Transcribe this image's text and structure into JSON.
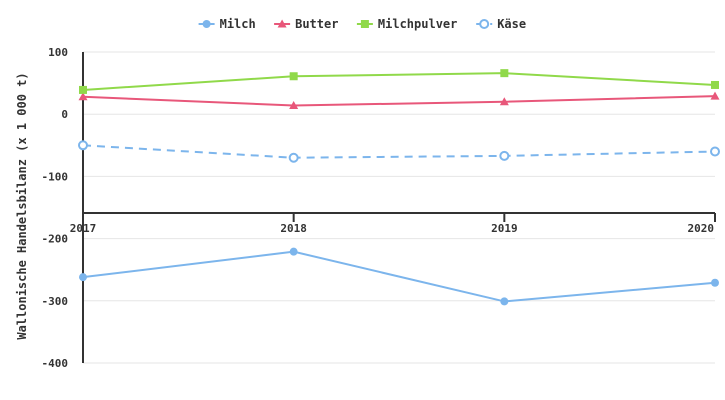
{
  "chart_data": {
    "type": "line",
    "title": "",
    "xlabel": "",
    "ylabel": "Wallonische Handelsbilanz (x 1 000 t)",
    "categories": [
      "2017",
      "2018",
      "2019",
      "2020"
    ],
    "ylim": [
      -400,
      100
    ],
    "yticks": [
      100,
      0,
      -100,
      -200,
      -300,
      -400
    ],
    "grid": true,
    "legend_position": "top",
    "series": [
      {
        "name": "Milch",
        "values": [
          -262,
          -221,
          -301,
          -271
        ],
        "color": "#7cb5ec",
        "marker": "circle",
        "dash": "solid"
      },
      {
        "name": "Butter",
        "values": [
          28,
          14,
          20,
          29
        ],
        "color": "#e8577a",
        "marker": "triangle",
        "dash": "solid"
      },
      {
        "name": "Milchpulver",
        "values": [
          39,
          61,
          66,
          47
        ],
        "color": "#90d94a",
        "marker": "square",
        "dash": "solid"
      },
      {
        "name": "Käse",
        "values": [
          -50,
          -70,
          -67,
          -60
        ],
        "color": "#7cb5ec",
        "marker": "circle-hollow",
        "dash": "dashed"
      }
    ]
  }
}
